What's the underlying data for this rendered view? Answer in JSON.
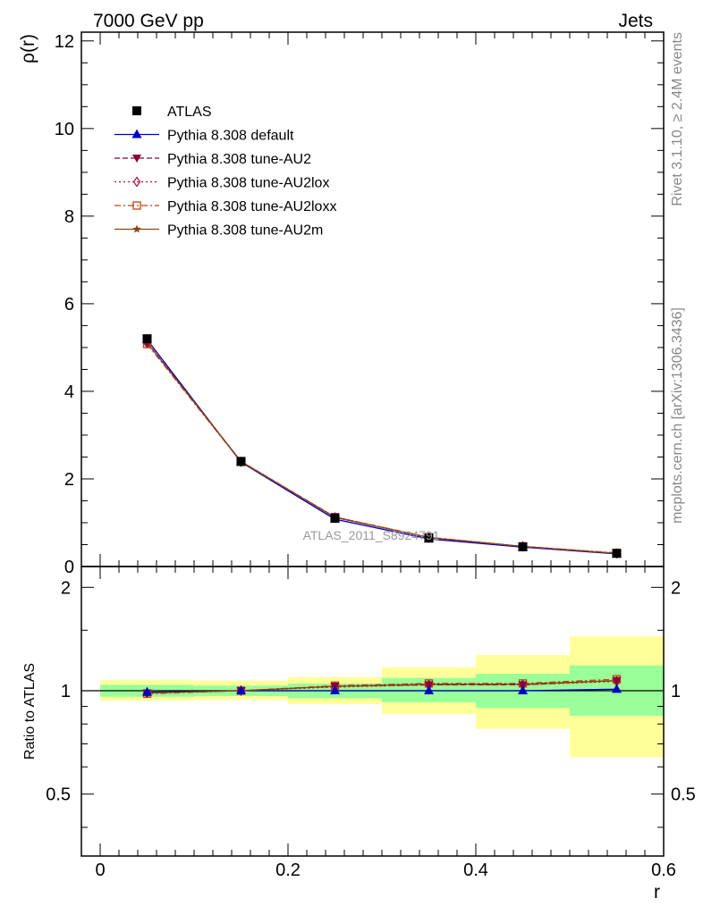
{
  "header": {
    "left": "7000 GeV pp",
    "right": "Jets"
  },
  "side_labels": {
    "top": "Rivet 3.1.10, ≥ 2.4M events",
    "bottom": "mcplots.cern.ch [arXiv:1306.3436]"
  },
  "watermark": "ATLAS_2011_S8924791",
  "legend": [
    {
      "label": "ATLAS",
      "color": "#000000",
      "marker": "square",
      "line": "none"
    },
    {
      "label": "Pythia 8.308 default",
      "color": "#0000cc",
      "marker": "triangle-up",
      "line": "solid"
    },
    {
      "label": "Pythia 8.308 tune-AU2",
      "color": "#8b0039",
      "marker": "triangle-down",
      "line": "dashed"
    },
    {
      "label": "Pythia 8.308 tune-AU2lox",
      "color": "#a0103a",
      "marker": "diamond-open",
      "line": "dotted"
    },
    {
      "label": "Pythia 8.308 tune-AU2loxx",
      "color": "#c84010",
      "marker": "square-open",
      "line": "dashdot"
    },
    {
      "label": "Pythia 8.308 tune-AU2m",
      "color": "#8b4510",
      "marker": "star",
      "line": "solid"
    }
  ],
  "chart_data": [
    {
      "type": "line",
      "title": "",
      "xlabel": "r",
      "ylabel": "ρ(r)",
      "xlim": [
        -0.02,
        0.6
      ],
      "ylim": [
        0,
        12.2
      ],
      "yticks": [
        0,
        2,
        4,
        6,
        8,
        10,
        12
      ],
      "ytick_labels": [
        "0",
        "2",
        "4",
        "6",
        "8",
        "10",
        "12"
      ],
      "x": [
        0.05,
        0.15,
        0.25,
        0.35,
        0.45,
        0.55
      ],
      "series": [
        {
          "name": "ATLAS",
          "values": [
            5.2,
            2.4,
            1.1,
            0.65,
            0.45,
            0.3
          ]
        },
        {
          "name": "Pythia 8.308 default",
          "values": [
            5.18,
            2.38,
            1.08,
            0.63,
            0.44,
            0.29
          ]
        },
        {
          "name": "Pythia 8.308 tune-AU2",
          "values": [
            5.12,
            2.4,
            1.13,
            0.66,
            0.46,
            0.3
          ]
        },
        {
          "name": "Pythia 8.308 tune-AU2lox",
          "values": [
            5.1,
            2.39,
            1.12,
            0.66,
            0.46,
            0.3
          ]
        },
        {
          "name": "Pythia 8.308 tune-AU2loxx",
          "values": [
            5.08,
            2.39,
            1.13,
            0.67,
            0.46,
            0.31
          ]
        },
        {
          "name": "Pythia 8.308 tune-AU2m",
          "values": [
            5.11,
            2.4,
            1.12,
            0.66,
            0.46,
            0.3
          ]
        }
      ]
    },
    {
      "type": "line",
      "title": "",
      "xlabel": "r",
      "ylabel": "Ratio to ATLAS",
      "xlim": [
        -0.02,
        0.6
      ],
      "ylim": [
        0.33,
        2.3
      ],
      "yticks": [
        0.5,
        1,
        2
      ],
      "ytick_labels": [
        "0.5",
        "1",
        "2"
      ],
      "xticks": [
        0,
        0.2,
        0.4,
        0.6
      ],
      "xtick_labels": [
        "0",
        "0.2",
        "0.4",
        "0.6"
      ],
      "reference_line": 1,
      "bands": [
        {
          "x0": -0.0,
          "x1": 0.1,
          "green": [
            0.96,
            1.04
          ],
          "yellow": [
            0.935,
            1.075
          ]
        },
        {
          "x0": 0.1,
          "x1": 0.2,
          "green": [
            0.965,
            1.035
          ],
          "yellow": [
            0.94,
            1.07
          ]
        },
        {
          "x0": 0.2,
          "x1": 0.3,
          "green": [
            0.95,
            1.05
          ],
          "yellow": [
            0.915,
            1.095
          ]
        },
        {
          "x0": 0.3,
          "x1": 0.4,
          "green": [
            0.925,
            1.09
          ],
          "yellow": [
            0.855,
            1.17
          ]
        },
        {
          "x0": 0.4,
          "x1": 0.5,
          "green": [
            0.89,
            1.12
          ],
          "yellow": [
            0.775,
            1.27
          ]
        },
        {
          "x0": 0.5,
          "x1": 0.6,
          "green": [
            0.845,
            1.185
          ],
          "yellow": [
            0.64,
            1.44
          ]
        }
      ],
      "x": [
        0.05,
        0.15,
        0.25,
        0.35,
        0.45,
        0.55
      ],
      "series": [
        {
          "name": "Pythia 8.308 default",
          "values": [
            0.99,
            1.0,
            1.0,
            1.0,
            1.0,
            1.01
          ]
        },
        {
          "name": "Pythia 8.308 tune-AU2",
          "values": [
            0.985,
            1.0,
            1.03,
            1.04,
            1.04,
            1.07
          ]
        },
        {
          "name": "Pythia 8.308 tune-AU2lox",
          "values": [
            0.985,
            1.0,
            1.025,
            1.04,
            1.04,
            1.065
          ]
        },
        {
          "name": "Pythia 8.308 tune-AU2loxx",
          "values": [
            0.98,
            1.0,
            1.035,
            1.05,
            1.05,
            1.08
          ]
        },
        {
          "name": "Pythia 8.308 tune-AU2m",
          "values": [
            0.985,
            1.0,
            1.03,
            1.045,
            1.045,
            1.07
          ]
        }
      ]
    }
  ]
}
